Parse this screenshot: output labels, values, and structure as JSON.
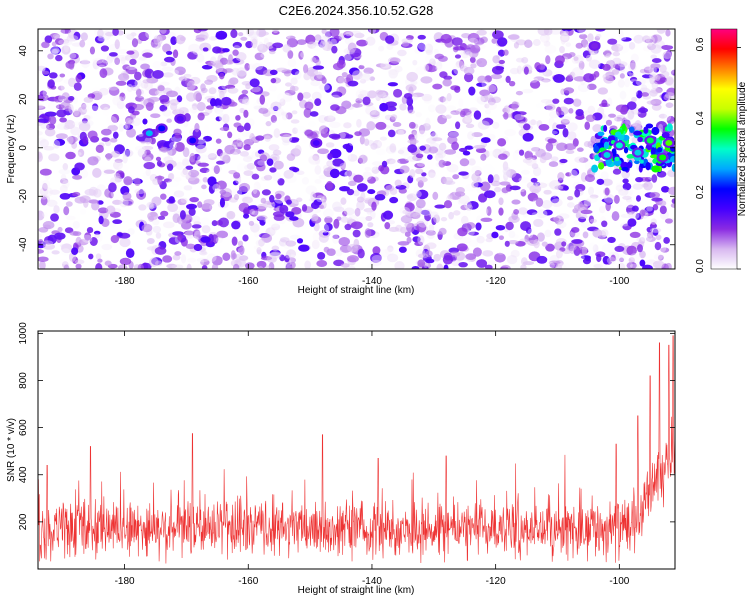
{
  "title": "C2E6.2024.356.10.52.G28",
  "chart_data": [
    {
      "type": "heatmap",
      "xlabel": "Height of straight line (km)",
      "ylabel": "Frequency (Hz)",
      "xlim": [
        -194,
        -91
      ],
      "ylim": [
        -50,
        49
      ],
      "xticks": [
        -180,
        -160,
        -140,
        -120,
        -100
      ],
      "yticks": [
        -40,
        -20,
        0,
        20,
        40
      ],
      "colorbar": {
        "label": "Normalized spectral amplitude",
        "range": [
          0,
          0.65
        ],
        "ticks": [
          0.0,
          0.2,
          0.4,
          0.6
        ],
        "colormap": [
          "#ffffff",
          "#d8b8f0",
          "#8a2be2",
          "#4400ff",
          "#0000ff",
          "#00a8ff",
          "#00ffc8",
          "#00ff00",
          "#c8ff00",
          "#ffff00",
          "#ff8000",
          "#ff0000",
          "#ff0080"
        ]
      },
      "hotspots": [
        {
          "x": -176,
          "y": 6,
          "amp": 0.28
        },
        {
          "x": -174,
          "y": 8,
          "amp": 0.22
        },
        {
          "x": -169,
          "y": 3,
          "amp": 0.2
        },
        {
          "x": -171,
          "y": 12,
          "amp": 0.15
        },
        {
          "x": -149,
          "y": 2,
          "amp": 0.16
        },
        {
          "x": -104,
          "y": 42,
          "amp": 0.12
        },
        {
          "x": -102,
          "y": -3,
          "amp": 0.3
        },
        {
          "x": -100,
          "y": 1,
          "amp": 0.32
        },
        {
          "x": -97,
          "y": -2,
          "amp": 0.3
        },
        {
          "x": -95,
          "y": 3,
          "amp": 0.36
        },
        {
          "x": -93,
          "y": -4,
          "amp": 0.38
        },
        {
          "x": -92,
          "y": 2,
          "amp": 0.4
        }
      ],
      "band_start_x": -104
    },
    {
      "type": "line",
      "xlabel": "Height of straight line (km)",
      "ylabel": "SNR (10 * v/v)",
      "xlim": [
        -194,
        -91
      ],
      "ylim": [
        0,
        1010
      ],
      "xticks": [
        -180,
        -160,
        -140,
        -120,
        -100
      ],
      "yticks": [
        200,
        400,
        600,
        800,
        1000
      ],
      "color": "#ee3333",
      "noise_base": 170,
      "noise_spread": 110,
      "peaks": [
        {
          "x": -192.5,
          "y": 440
        },
        {
          "x": -185.5,
          "y": 520
        },
        {
          "x": -169,
          "y": 575
        },
        {
          "x": -148,
          "y": 570
        },
        {
          "x": -139,
          "y": 470
        },
        {
          "x": -128,
          "y": 480
        },
        {
          "x": -100.5,
          "y": 530
        },
        {
          "x": -97,
          "y": 650
        },
        {
          "x": -95,
          "y": 820
        },
        {
          "x": -93.5,
          "y": 960
        },
        {
          "x": -92,
          "y": 950
        },
        {
          "x": -91.3,
          "y": 990
        }
      ],
      "ramp_start_x": -98
    }
  ]
}
